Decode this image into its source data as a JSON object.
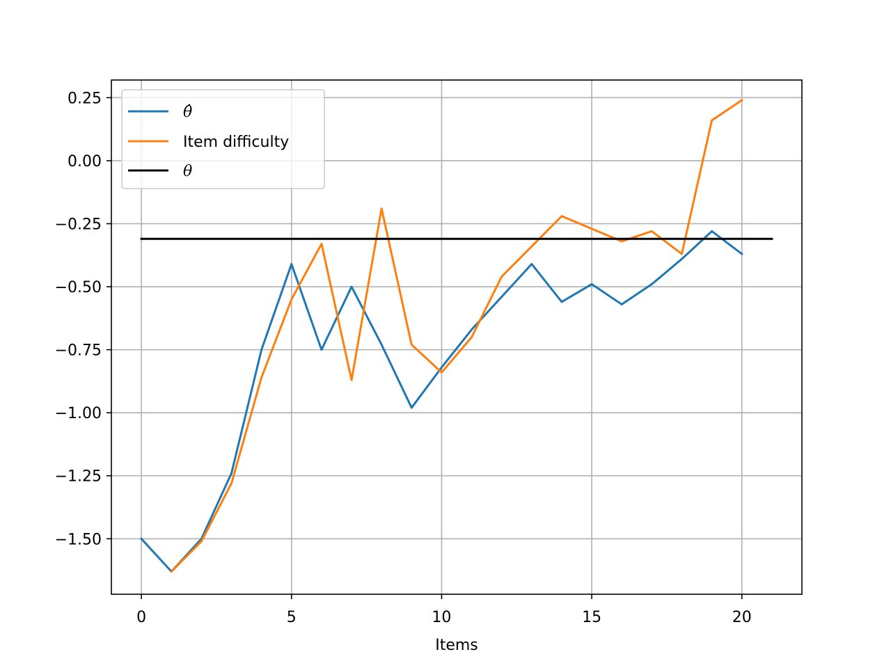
{
  "chart_data": {
    "type": "line",
    "xlabel": "Items",
    "ylabel": "",
    "title": "",
    "xlim": [
      -1,
      22
    ],
    "ylim": [
      -1.72,
      0.32
    ],
    "xticks": [
      0,
      5,
      10,
      15,
      20
    ],
    "yticks": [
      0.25,
      0.0,
      -0.25,
      -0.5,
      -0.75,
      -1.0,
      -1.25,
      -1.5
    ],
    "ytick_labels": [
      "0.25",
      "0.00",
      "−0.25",
      "−0.50",
      "−0.75",
      "−1.00",
      "−1.25",
      "−1.50"
    ],
    "xtick_labels": [
      "0",
      "5",
      "10",
      "15",
      "20"
    ],
    "grid": true,
    "legend_position": "top-left",
    "series": [
      {
        "name": "θ̂",
        "color": "#1f77b4",
        "x": [
          0,
          1,
          2,
          3,
          4,
          5,
          6,
          7,
          8,
          9,
          10,
          11,
          12,
          13,
          14,
          15,
          16,
          17,
          18,
          19,
          20
        ],
        "y": [
          -1.5,
          -1.63,
          -1.5,
          -1.24,
          -0.75,
          -0.41,
          -0.75,
          -0.5,
          -0.73,
          -0.98,
          -0.82,
          -0.67,
          -0.54,
          -0.41,
          -0.56,
          -0.49,
          -0.57,
          -0.49,
          -0.39,
          -0.28,
          -0.37
        ]
      },
      {
        "name": "Item difficulty",
        "color": "#ff7f0e",
        "x": [
          0,
          1,
          2,
          3,
          4,
          5,
          6,
          7,
          8,
          9,
          10,
          11,
          12,
          13,
          14,
          15,
          16,
          17,
          18,
          19,
          20
        ],
        "y": [
          null,
          -1.63,
          -1.51,
          -1.28,
          -0.86,
          -0.55,
          -0.33,
          -0.87,
          -0.19,
          -0.73,
          -0.84,
          -0.7,
          -0.46,
          -0.34,
          -0.22,
          -0.27,
          -0.32,
          -0.28,
          -0.37,
          0.16,
          0.24
        ]
      },
      {
        "name": "θ",
        "color": "#000000",
        "x": [
          0,
          21
        ],
        "y": [
          -0.31,
          -0.31
        ]
      }
    ]
  }
}
